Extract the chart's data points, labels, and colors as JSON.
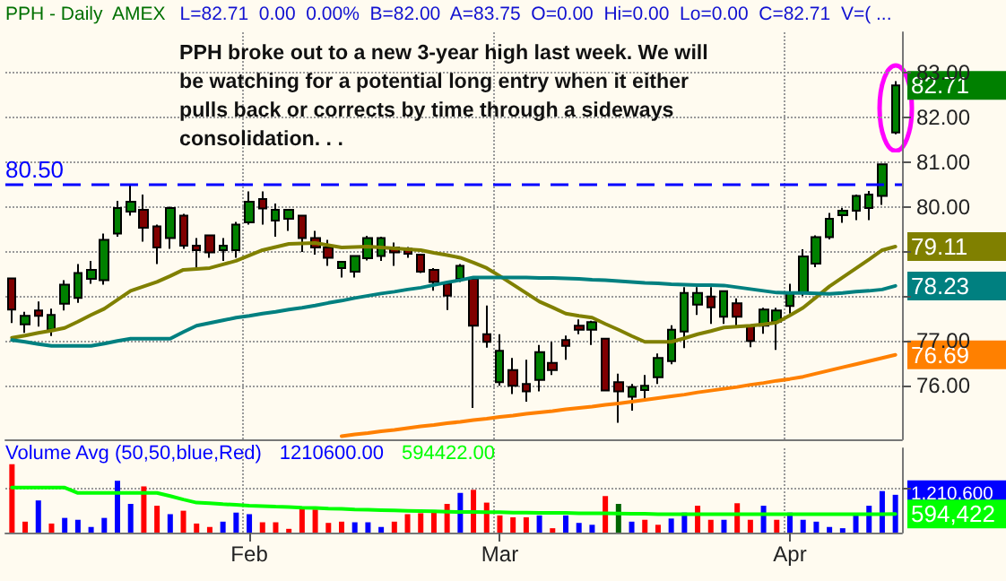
{
  "chart_data": [
    {
      "type": "candlestick",
      "title": "PPH - Daily  AMEX",
      "subtitle": "L=82.71  0.00  0.00%  B=82.00  A=83.75  O=0.00  Hi=0.00  Lo=0.00  C=82.71  V=( ...",
      "annotations": [
        "PPH broke out to a new 3-year high last week.  We will be watching for a potential long entry when it either pulls back or corrects by time through a sideways consolidation. . ."
      ],
      "categories": [
        null,
        null,
        null,
        null,
        null,
        null,
        null,
        null,
        null,
        null,
        null,
        null,
        null,
        null,
        null,
        null,
        null,
        null,
        null,
        null,
        null,
        null,
        null,
        null,
        null,
        null,
        null,
        null,
        null,
        null,
        null,
        null,
        null,
        null,
        null,
        null,
        null,
        null,
        null,
        null,
        null,
        null,
        null,
        null,
        null,
        null,
        null,
        null,
        null,
        null,
        null,
        null,
        null,
        null,
        null,
        null,
        null,
        null,
        null,
        null,
        null,
        null,
        null,
        null,
        null,
        null,
        null,
        null
      ],
      "ylim": [
        74.8,
        83.9
      ],
      "yticks": [
        {
          "value": 76,
          "label": "76.00"
        },
        {
          "value": 77,
          "label": "77.00"
        },
        {
          "value": 78,
          "label": null
        },
        {
          "value": 79,
          "label": null
        },
        {
          "value": 80,
          "label": "80.00"
        },
        {
          "value": 81,
          "label": "81.00"
        },
        {
          "value": 82,
          "label": "82.00"
        },
        {
          "value": 83,
          "label": "83.00"
        }
      ],
      "tick_labels": "y",
      "grid": true,
      "marker": "none",
      "ref_lines": [
        {
          "axis": "y",
          "value": 80.5,
          "label": "80.50",
          "color": "#0000ff",
          "line_style": "dashed"
        }
      ],
      "series": [
        {
          "type": "candlestick",
          "ohlc": [
            [
              78.4,
              78.4,
              77.4,
              77.7
            ],
            [
              77.37,
              77.65,
              77.18,
              77.56
            ],
            [
              77.68,
              77.88,
              77.32,
              77.56
            ],
            [
              77.25,
              77.72,
              77.11,
              77.58
            ],
            [
              77.83,
              78.36,
              77.68,
              78.26
            ],
            [
              77.96,
              78.72,
              77.85,
              78.52
            ],
            [
              78.39,
              78.79,
              78.28,
              78.59
            ],
            [
              78.36,
              79.4,
              78.26,
              79.26
            ],
            [
              79.4,
              80.13,
              79.33,
              79.97
            ],
            [
              79.89,
              80.51,
              79.8,
              80.11
            ],
            [
              79.93,
              80.27,
              79.22,
              79.53
            ],
            [
              79.56,
              79.6,
              78.72,
              79.09
            ],
            [
              79.3,
              80.0,
              79.06,
              79.97
            ],
            [
              79.8,
              79.84,
              79.06,
              79.13
            ],
            [
              79.13,
              79.3,
              78.63,
              79.03
            ],
            [
              79.36,
              79.36,
              78.86,
              78.98
            ],
            [
              79.03,
              79.3,
              78.79,
              79.13
            ],
            [
              79.03,
              79.66,
              78.86,
              79.6
            ],
            [
              79.65,
              80.34,
              79.6,
              80.11
            ],
            [
              80.17,
              80.34,
              79.6,
              79.96
            ],
            [
              79.69,
              80.07,
              79.33,
              79.93
            ],
            [
              79.73,
              79.93,
              79.46,
              79.93
            ],
            [
              79.8,
              79.8,
              78.99,
              79.3
            ],
            [
              79.3,
              79.46,
              78.93,
              79.09
            ],
            [
              79.09,
              79.26,
              78.68,
              78.86
            ],
            [
              78.63,
              78.79,
              78.42,
              78.77
            ],
            [
              78.55,
              78.9,
              78.42,
              78.9
            ],
            [
              78.85,
              79.35,
              78.8,
              79.3
            ],
            [
              78.9,
              79.33,
              78.79,
              79.3
            ],
            [
              79.09,
              79.2,
              78.68,
              78.98
            ],
            [
              79.06,
              79.1,
              78.86,
              78.95
            ],
            [
              78.93,
              78.93,
              78.52,
              78.55
            ],
            [
              78.59,
              78.63,
              78.12,
              78.32
            ],
            [
              78.28,
              78.28,
              77.69,
              78.01
            ],
            [
              78.39,
              78.72,
              78.32,
              78.68
            ],
            [
              78.39,
              78.39,
              75.5,
              77.34
            ],
            [
              77.15,
              77.79,
              76.85,
              76.98
            ],
            [
              76.08,
              77.15,
              76.0,
              76.78
            ],
            [
              76.35,
              76.62,
              75.81,
              76.0
            ],
            [
              76.04,
              76.58,
              75.64,
              75.87
            ],
            [
              76.13,
              76.91,
              75.87,
              76.75
            ],
            [
              76.51,
              76.98,
              76.24,
              76.35
            ],
            [
              77.02,
              77.12,
              76.58,
              76.89
            ],
            [
              77.34,
              77.48,
              77.15,
              77.25
            ],
            [
              77.25,
              77.45,
              76.91,
              77.42
            ],
            [
              77.05,
              77.05,
              75.87,
              75.89
            ],
            [
              76.08,
              76.27,
              75.17,
              75.87
            ],
            [
              75.75,
              76.04,
              75.44,
              75.97
            ],
            [
              75.9,
              76.24,
              75.64,
              76.0
            ],
            [
              76.19,
              76.72,
              76.04,
              76.62
            ],
            [
              76.55,
              77.35,
              76.48,
              77.25
            ],
            [
              77.21,
              78.2,
              76.84,
              78.07
            ],
            [
              77.81,
              78.2,
              77.58,
              78.07
            ],
            [
              77.99,
              78.2,
              77.38,
              77.75
            ],
            [
              77.54,
              78.11,
              77.38,
              78.11
            ],
            [
              77.84,
              77.95,
              77.3,
              77.54
            ],
            [
              77.34,
              77.34,
              76.86,
              77.0
            ],
            [
              77.34,
              77.74,
              77.16,
              77.7
            ],
            [
              77.43,
              77.74,
              76.8,
              77.68
            ],
            [
              77.78,
              78.28,
              77.61,
              78.08
            ],
            [
              78.08,
              79.05,
              78.0,
              78.89
            ],
            [
              78.73,
              79.36,
              78.65,
              79.32
            ],
            [
              79.32,
              79.86,
              79.27,
              79.73
            ],
            [
              79.81,
              79.97,
              79.64,
              79.91
            ],
            [
              79.91,
              80.27,
              79.7,
              80.24
            ],
            [
              79.97,
              80.35,
              79.7,
              80.27
            ],
            [
              80.24,
              80.95,
              80.04,
              80.95
            ],
            [
              81.66,
              82.81,
              81.62,
              82.71
            ]
          ],
          "value_labels": [
            null,
            null,
            null,
            null,
            null,
            null,
            null,
            null,
            null,
            null,
            null,
            null,
            null,
            null,
            null,
            null,
            null,
            null,
            null,
            null,
            null,
            null,
            null,
            null,
            null,
            null,
            null,
            null,
            null,
            null,
            null,
            null,
            null,
            null,
            null,
            null,
            null,
            null,
            null,
            null,
            null,
            null,
            null,
            null,
            null,
            null,
            null,
            null,
            null,
            null,
            null,
            null,
            null,
            null,
            null,
            null,
            null,
            null,
            null,
            null,
            null,
            null,
            null,
            null,
            null,
            null,
            null,
            "82.71"
          ],
          "colors": [
            "#800000",
            "#008000",
            "#800000",
            "#008000",
            "#008000",
            "#008000",
            "#008000",
            "#008000",
            "#008000",
            "#008000",
            "#800000",
            "#800000",
            "#008000",
            "#800000",
            "#800000",
            "#800000",
            "#008000",
            "#008000",
            "#008000",
            "#800000",
            "#008000",
            "#008000",
            "#800000",
            "#800000",
            "#800000",
            "#008000",
            "#008000",
            "#008000",
            "#008000",
            "#800000",
            "#800000",
            "#800000",
            "#800000",
            "#800000",
            "#008000",
            "#800000",
            "#800000",
            "#008000",
            "#800000",
            "#800000",
            "#008000",
            "#800000",
            "#800000",
            "#800000",
            "#008000",
            "#800000",
            "#800000",
            "#008000",
            "#008000",
            "#008000",
            "#008000",
            "#008000",
            "#008000",
            "#800000",
            "#008000",
            "#800000",
            "#800000",
            "#008000",
            "#008000",
            "#008000",
            "#008000",
            "#008000",
            "#008000",
            "#008000",
            "#008000",
            "#008000",
            "#008000",
            "#008000"
          ]
        },
        {
          "type": "line",
          "color": "#808000",
          "values": [
            77.07,
            77.12,
            77.18,
            77.23,
            77.29,
            77.43,
            77.58,
            77.72,
            77.92,
            78.12,
            78.22,
            78.32,
            78.45,
            78.59,
            78.61,
            78.63,
            78.71,
            78.79,
            78.91,
            79.03,
            79.1,
            79.17,
            79.18,
            79.19,
            79.14,
            79.09,
            79.1,
            79.11,
            79.09,
            79.07,
            79.05,
            79.03,
            78.97,
            78.92,
            78.86,
            78.75,
            78.63,
            78.45,
            78.26,
            78.07,
            77.88,
            77.75,
            77.61,
            77.56,
            77.52,
            77.38,
            77.25,
            77.11,
            76.98,
            76.98,
            76.98,
            77.06,
            77.15,
            77.22,
            77.3,
            77.32,
            77.34,
            77.37,
            77.41,
            77.57,
            77.74,
            77.98,
            78.22,
            78.42,
            78.62,
            78.82,
            79.03,
            79.11
          ],
          "value_labels": [
            null,
            null,
            null,
            null,
            null,
            null,
            null,
            null,
            null,
            null,
            null,
            null,
            null,
            null,
            null,
            null,
            null,
            null,
            null,
            null,
            null,
            null,
            null,
            null,
            null,
            null,
            null,
            null,
            null,
            null,
            null,
            null,
            null,
            null,
            null,
            null,
            null,
            null,
            null,
            null,
            null,
            null,
            null,
            null,
            null,
            null,
            null,
            null,
            null,
            null,
            null,
            null,
            null,
            null,
            null,
            null,
            null,
            null,
            null,
            null,
            null,
            null,
            null,
            null,
            null,
            null,
            null,
            "79.11"
          ]
        },
        {
          "type": "line",
          "color": "#008080",
          "values": [
            77.02,
            76.98,
            76.93,
            76.89,
            76.89,
            76.89,
            76.89,
            76.94,
            77.0,
            77.05,
            77.05,
            77.05,
            77.05,
            77.2,
            77.34,
            77.4,
            77.46,
            77.52,
            77.56,
            77.61,
            77.65,
            77.7,
            77.74,
            77.79,
            77.85,
            77.9,
            77.96,
            78.01,
            78.06,
            78.1,
            78.15,
            78.19,
            78.25,
            78.31,
            78.36,
            78.42,
            78.42,
            78.42,
            78.42,
            78.42,
            78.41,
            78.41,
            78.4,
            78.39,
            78.37,
            78.36,
            78.34,
            78.32,
            78.3,
            78.29,
            78.27,
            78.26,
            78.25,
            78.25,
            78.24,
            78.2,
            78.16,
            78.12,
            78.08,
            78.07,
            78.07,
            78.06,
            78.05,
            78.07,
            78.1,
            78.12,
            78.15,
            78.23
          ],
          "value_labels": [
            null,
            null,
            null,
            null,
            null,
            null,
            null,
            null,
            null,
            null,
            null,
            null,
            null,
            null,
            null,
            null,
            null,
            null,
            null,
            null,
            null,
            null,
            null,
            null,
            null,
            null,
            null,
            null,
            null,
            null,
            null,
            null,
            null,
            null,
            null,
            null,
            null,
            null,
            null,
            null,
            null,
            null,
            null,
            null,
            null,
            null,
            null,
            null,
            null,
            null,
            null,
            null,
            null,
            null,
            null,
            null,
            null,
            null,
            null,
            null,
            null,
            null,
            null,
            null,
            null,
            null,
            null,
            "78.23"
          ]
        },
        {
          "type": "line",
          "color": "#ff8000",
          "values": [
            null,
            null,
            null,
            null,
            null,
            null,
            null,
            null,
            null,
            null,
            null,
            null,
            null,
            null,
            null,
            null,
            null,
            null,
            null,
            null,
            null,
            null,
            null,
            null,
            null,
            74.87,
            74.91,
            74.94,
            74.98,
            75.01,
            75.05,
            75.09,
            75.12,
            75.16,
            75.19,
            75.23,
            75.26,
            75.3,
            75.33,
            75.37,
            75.4,
            75.43,
            75.47,
            75.5,
            75.53,
            75.57,
            75.6,
            75.64,
            75.68,
            75.72,
            75.76,
            75.8,
            75.85,
            75.89,
            75.93,
            75.97,
            76.02,
            76.06,
            76.11,
            76.15,
            76.2,
            76.27,
            76.34,
            76.41,
            76.48,
            76.55,
            76.62,
            76.69
          ],
          "value_labels": [
            null,
            null,
            null,
            null,
            null,
            null,
            null,
            null,
            null,
            null,
            null,
            null,
            null,
            null,
            null,
            null,
            null,
            null,
            null,
            null,
            null,
            null,
            null,
            null,
            null,
            null,
            null,
            null,
            null,
            null,
            null,
            null,
            null,
            null,
            null,
            null,
            null,
            null,
            null,
            null,
            null,
            null,
            null,
            null,
            null,
            null,
            null,
            null,
            null,
            null,
            null,
            null,
            null,
            null,
            null,
            null,
            null,
            null,
            null,
            null,
            null,
            null,
            null,
            null,
            null,
            null,
            null,
            "76.69"
          ]
        }
      ]
    },
    {
      "type": "bar",
      "title": "Volume Avg (50,50,blue,Red)",
      "annotations": [
        "1210600.00",
        "594422.00"
      ],
      "categories": [
        null,
        null,
        null,
        null,
        null,
        null,
        null,
        null,
        null,
        null,
        null,
        null,
        null,
        null,
        null,
        null,
        null,
        null,
        "Feb",
        null,
        null,
        null,
        null,
        null,
        null,
        null,
        null,
        null,
        null,
        null,
        null,
        null,
        null,
        null,
        null,
        null,
        null,
        "Mar",
        null,
        null,
        null,
        null,
        null,
        null,
        null,
        null,
        null,
        null,
        null,
        null,
        null,
        null,
        null,
        null,
        null,
        null,
        null,
        null,
        null,
        "Apr",
        null,
        null,
        null,
        null,
        null,
        null,
        null,
        null
      ],
      "ylim": [
        0,
        2700000
      ],
      "yticks": [
        {
          "value": 1400000,
          "label": null
        }
      ],
      "grid": true,
      "marker": "none",
      "series": [
        {
          "type": "bar",
          "color": "#0000ff",
          "values": [
            2190000,
            350000,
            1030000,
            290000,
            470000,
            410000,
            180000,
            470000,
            1660000,
            920000,
            1480000,
            860000,
            590000,
            700000,
            290000,
            180000,
            350000,
            640000,
            590000,
            330000,
            330000,
            120000,
            760000,
            740000,
            310000,
            350000,
            330000,
            330000,
            180000,
            350000,
            590000,
            620000,
            720000,
            920000,
            1270000,
            1370000,
            960000,
            550000,
            490000,
            490000,
            550000,
            140000,
            550000,
            310000,
            250000,
            1170000,
            920000,
            350000,
            410000,
            250000,
            450000,
            640000,
            860000,
            410000,
            410000,
            940000,
            410000,
            860000,
            410000,
            640000,
            410000,
            350000,
            180000,
            140000,
            550000,
            860000,
            1330000,
            1210600
          ],
          "colors": [
            "#ff0000",
            "#ff0000",
            "#0000ff",
            "#ff0000",
            "#0000ff",
            "#0000ff",
            "#0000ff",
            "#0000ff",
            "#0000ff",
            "#0000ff",
            "#ff0000",
            "#ff0000",
            "#0000ff",
            "#ff0000",
            "#ff0000",
            "#ff0000",
            "#0000ff",
            "#0000ff",
            "#0000ff",
            "#ff0000",
            "#ff0000",
            "#ff0000",
            "#ff0000",
            "#ff0000",
            "#ff0000",
            "#ff0000",
            "#0000ff",
            "#0000ff",
            "#0000ff",
            "#ff0000",
            "#ff0000",
            "#ff0000",
            "#ff0000",
            "#ff0000",
            "#0000ff",
            "#ff0000",
            "#ff0000",
            "#ff0000",
            "#ff0000",
            "#ff0000",
            "#0000ff",
            "#ff0000",
            "#0000ff",
            "#0000ff",
            "#0000ff",
            "#ff0000",
            "#006400",
            "#0000ff",
            "#ff0000",
            "#ff0000",
            "#0000ff",
            "#0000ff",
            "#ff0000",
            "#ff0000",
            "#0000ff",
            "#ff0000",
            "#ff0000",
            "#0000ff",
            "#ff0000",
            "#0000ff",
            "#0000ff",
            "#0000ff",
            "#0000ff",
            "#0000ff",
            "#0000ff",
            "#0000ff",
            "#0000ff",
            "#0000ff"
          ],
          "value_labels": [
            null,
            null,
            null,
            null,
            null,
            null,
            null,
            null,
            null,
            null,
            null,
            null,
            null,
            null,
            null,
            null,
            null,
            null,
            null,
            null,
            null,
            null,
            null,
            null,
            null,
            null,
            null,
            null,
            null,
            null,
            null,
            null,
            null,
            null,
            null,
            null,
            null,
            null,
            null,
            null,
            null,
            null,
            null,
            null,
            null,
            null,
            null,
            null,
            null,
            null,
            null,
            null,
            null,
            null,
            null,
            null,
            null,
            null,
            null,
            null,
            null,
            null,
            null,
            null,
            null,
            null,
            null,
            "1,210,600"
          ]
        },
        {
          "type": "line",
          "color": "#00ff00",
          "values": [
            1440000,
            1440000,
            1440000,
            1440000,
            1440000,
            1270000,
            1270000,
            1270000,
            1270000,
            1270000,
            1270000,
            1270000,
            1170000,
            1060000,
            960000,
            940000,
            910000,
            890000,
            860000,
            850000,
            830000,
            820000,
            800000,
            790000,
            770000,
            760000,
            740000,
            730000,
            720000,
            710000,
            700000,
            690000,
            680000,
            670000,
            660000,
            660000,
            650000,
            650000,
            640000,
            640000,
            630000,
            630000,
            630000,
            620000,
            620000,
            620000,
            610000,
            600000,
            600000,
            590000,
            590000,
            590000,
            590000,
            590000,
            590000,
            590000,
            590000,
            590000,
            590000,
            590000,
            590000,
            590000,
            590000,
            590000,
            590000,
            590000,
            590000,
            594422
          ],
          "value_labels": [
            null,
            null,
            null,
            null,
            null,
            null,
            null,
            null,
            null,
            null,
            null,
            null,
            null,
            null,
            null,
            null,
            null,
            null,
            null,
            null,
            null,
            null,
            null,
            null,
            null,
            null,
            null,
            null,
            null,
            null,
            null,
            null,
            null,
            null,
            null,
            null,
            null,
            null,
            null,
            null,
            null,
            null,
            null,
            null,
            null,
            null,
            null,
            null,
            null,
            null,
            null,
            null,
            null,
            null,
            null,
            null,
            null,
            null,
            null,
            null,
            null,
            null,
            null,
            null,
            null,
            null,
            null,
            "594,422"
          ]
        }
      ]
    }
  ]
}
